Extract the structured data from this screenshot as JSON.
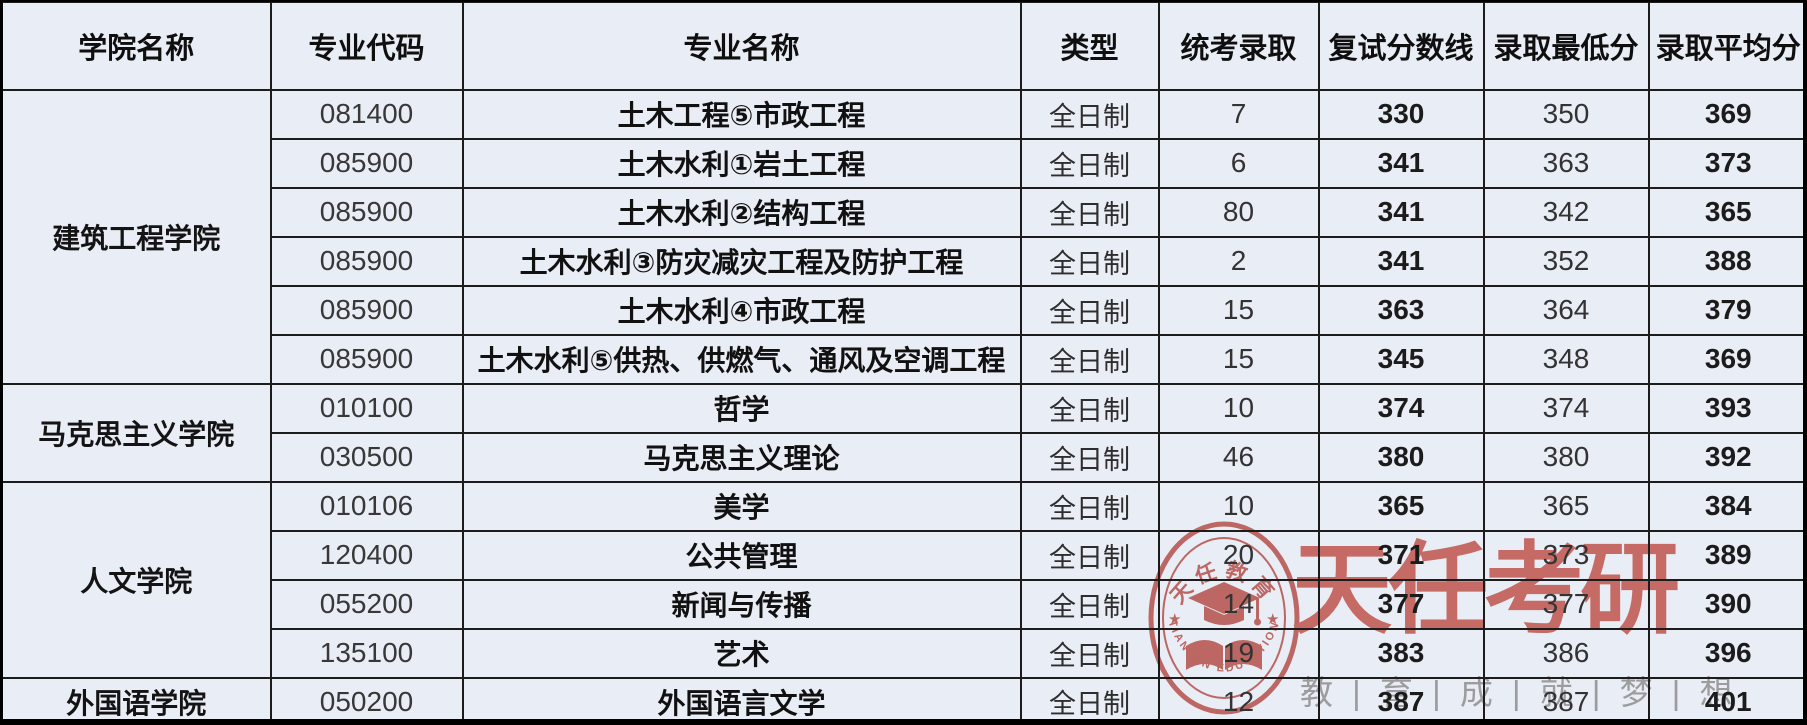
{
  "table": {
    "headers": [
      "学院名称",
      "专业代码",
      "专业名称",
      "类型",
      "统考录取",
      "复试分数线",
      "录取最低分",
      "录取平均分"
    ],
    "colleges": [
      {
        "name": "建筑工程学院",
        "rows": [
          {
            "code": "081400",
            "major": "土木工程⑤市政工程",
            "type": "全日制",
            "admitted": "7",
            "retest_line": "330",
            "min_score": "350",
            "avg_score": "369"
          },
          {
            "code": "085900",
            "major": "土木水利①岩土工程",
            "type": "全日制",
            "admitted": "6",
            "retest_line": "341",
            "min_score": "363",
            "avg_score": "373"
          },
          {
            "code": "085900",
            "major": "土木水利②结构工程",
            "type": "全日制",
            "admitted": "80",
            "retest_line": "341",
            "min_score": "342",
            "avg_score": "365"
          },
          {
            "code": "085900",
            "major": "土木水利③防灾减灾工程及防护工程",
            "type": "全日制",
            "admitted": "2",
            "retest_line": "341",
            "min_score": "352",
            "avg_score": "388"
          },
          {
            "code": "085900",
            "major": "土木水利④市政工程",
            "type": "全日制",
            "admitted": "15",
            "retest_line": "363",
            "min_score": "364",
            "avg_score": "379"
          },
          {
            "code": "085900",
            "major": "土木水利⑤供热、供燃气、通风及空调工程",
            "type": "全日制",
            "admitted": "15",
            "retest_line": "345",
            "min_score": "348",
            "avg_score": "369"
          }
        ]
      },
      {
        "name": "马克思主义学院",
        "rows": [
          {
            "code": "010100",
            "major": "哲学",
            "type": "全日制",
            "admitted": "10",
            "retest_line": "374",
            "min_score": "374",
            "avg_score": "393"
          },
          {
            "code": "030500",
            "major": "马克思主义理论",
            "type": "全日制",
            "admitted": "46",
            "retest_line": "380",
            "min_score": "380",
            "avg_score": "392"
          }
        ]
      },
      {
        "name": "人文学院",
        "rows": [
          {
            "code": "010106",
            "major": "美学",
            "type": "全日制",
            "admitted": "10",
            "retest_line": "365",
            "min_score": "365",
            "avg_score": "384"
          },
          {
            "code": "120400",
            "major": "公共管理",
            "type": "全日制",
            "admitted": "20",
            "retest_line": "371",
            "min_score": "373",
            "avg_score": "389"
          },
          {
            "code": "055200",
            "major": "新闻与传播",
            "type": "全日制",
            "admitted": "14",
            "retest_line": "377",
            "min_score": "377",
            "avg_score": "390"
          },
          {
            "code": "135100",
            "major": "艺术",
            "type": "全日制",
            "admitted": "19",
            "retest_line": "383",
            "min_score": "386",
            "avg_score": "396"
          }
        ]
      },
      {
        "name": "外国语学院",
        "rows": [
          {
            "code": "050200",
            "major": "外国语言文学",
            "type": "全日制",
            "admitted": "12",
            "retest_line": "387",
            "min_score": "387",
            "avg_score": "401"
          }
        ]
      }
    ]
  },
  "watermark": {
    "brand_text": "天任考研",
    "slogan": "教 | 育 | 成 | 就 | 梦 | 想",
    "seal_top_text": "天任教育",
    "seal_bottom_text": "TIANREN EDUCATION",
    "colors": {
      "brand_red": "#bf544b",
      "seal_red": "#b5504a",
      "slogan_gray": "#8f8f8f"
    }
  },
  "colors": {
    "cell_background": "#e9edf5",
    "grid_border": "#1c1c1c"
  }
}
